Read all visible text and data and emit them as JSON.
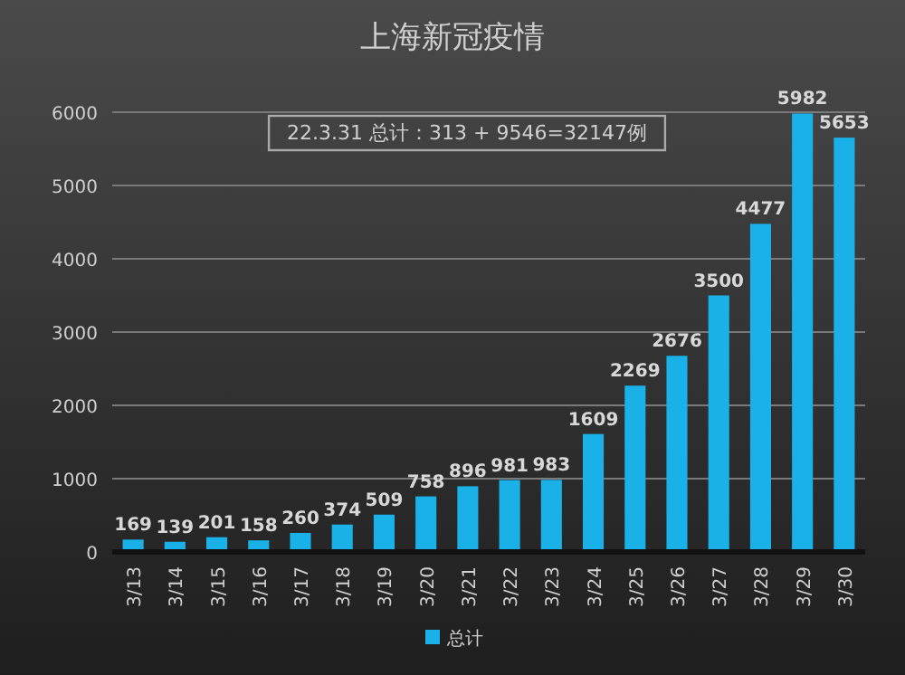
{
  "chart_data": {
    "type": "bar",
    "title": "上海新冠疫情",
    "categories": [
      "3/13",
      "3/14",
      "3/15",
      "3/16",
      "3/17",
      "3/18",
      "3/19",
      "3/20",
      "3/21",
      "3/22",
      "3/23",
      "3/24",
      "3/25",
      "3/26",
      "3/27",
      "3/28",
      "3/29",
      "3/30"
    ],
    "series": [
      {
        "name": "总计",
        "color": "#1ab0e8",
        "values": [
          169,
          139,
          201,
          158,
          260,
          374,
          509,
          758,
          896,
          981,
          983,
          1609,
          2269,
          2676,
          3500,
          4477,
          5982,
          5653
        ]
      }
    ],
    "ylim": [
      0,
      6000
    ],
    "yticks": [
      0,
      1000,
      2000,
      3000,
      4000,
      5000,
      6000
    ],
    "grid": "y",
    "legend": "bottom",
    "data_labels": true,
    "annotations": [
      "22.3.31 总计：313 + 9546=32147例"
    ]
  }
}
